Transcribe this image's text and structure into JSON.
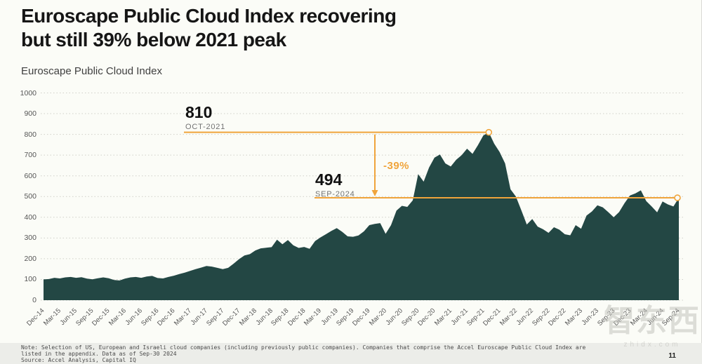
{
  "header": {
    "title_line1": "Euroscape Public Cloud Index recovering",
    "title_line2": "but still 39% below 2021 peak",
    "subtitle": "Euroscape Public Cloud Index"
  },
  "chart_data": {
    "type": "area",
    "title": "Euroscape Public Cloud Index",
    "frequency": "monthly",
    "x_range": [
      "Dec-14",
      "Sep-24"
    ],
    "ylim": [
      0,
      1000
    ],
    "y_ticks": [
      0,
      100,
      200,
      300,
      400,
      500,
      600,
      700,
      800,
      900,
      1000
    ],
    "x_tick_labels": [
      "Dec-14",
      "Mar-15",
      "Jun-15",
      "Sep-15",
      "Dec-15",
      "Mar-16",
      "Jun-16",
      "Sep-16",
      "Dec-16",
      "Mar-17",
      "Jun-17",
      "Sep-17",
      "Dec-17",
      "Mar-18",
      "Jun-18",
      "Sep-18",
      "Dec-18",
      "Mar-19",
      "Jun-19",
      "Sep-19",
      "Dec-19",
      "Mar-20",
      "Jun-20",
      "Sep-20",
      "Dec-20",
      "Mar-21",
      "Jun-21",
      "Sep-21",
      "Dec-21",
      "Mar-22",
      "Jun-22",
      "Sep-22",
      "Dec-22",
      "Mar-23",
      "Jun-23",
      "Sep-23",
      "Dec-23",
      "Mar-24",
      "Jun-24",
      "Sep-24"
    ],
    "x_tick_month_step": 3,
    "values": [
      100,
      102,
      108,
      105,
      110,
      112,
      108,
      111,
      104,
      101,
      106,
      110,
      106,
      97,
      95,
      104,
      110,
      112,
      108,
      114,
      117,
      107,
      105,
      112,
      118,
      126,
      133,
      141,
      150,
      157,
      165,
      162,
      156,
      150,
      156,
      176,
      198,
      216,
      222,
      240,
      250,
      253,
      256,
      292,
      270,
      290,
      265,
      252,
      257,
      248,
      285,
      303,
      318,
      334,
      348,
      330,
      308,
      306,
      312,
      332,
      362,
      368,
      372,
      320,
      362,
      432,
      455,
      450,
      482,
      608,
      572,
      640,
      688,
      703,
      660,
      645,
      678,
      700,
      731,
      706,
      748,
      795,
      810,
      755,
      715,
      660,
      535,
      500,
      433,
      365,
      392,
      355,
      342,
      325,
      352,
      340,
      318,
      313,
      362,
      345,
      408,
      428,
      458,
      448,
      425,
      400,
      425,
      468,
      505,
      515,
      530,
      478,
      452,
      424,
      476,
      462,
      452,
      494
    ],
    "annotations": {
      "peak": {
        "value": "810",
        "date": "OCT-2021",
        "numeric": 810,
        "month_index": 82
      },
      "current": {
        "value": "494",
        "date": "SEP-2024",
        "numeric": 494,
        "month_index": 117
      },
      "delta": {
        "label": "-39%"
      }
    },
    "grid": "dotted horizontal",
    "legend": "none",
    "colors": {
      "area": "#234744",
      "accent": "#F0A43B",
      "grid": "#CFCFC8"
    }
  },
  "footer": {
    "note_line1": "Note: Selection of US, European and Israeli cloud companies (including previously public companies). Companies that comprise the Accel Euroscape Public Cloud Index are",
    "note_line2": "listed in the appendix. Data as of Sep-30 2024",
    "source": "Source: Accel Analysis, Capital IQ",
    "page_number": "11"
  },
  "watermark": {
    "text": "智东西",
    "domain": "zhidx.com"
  }
}
